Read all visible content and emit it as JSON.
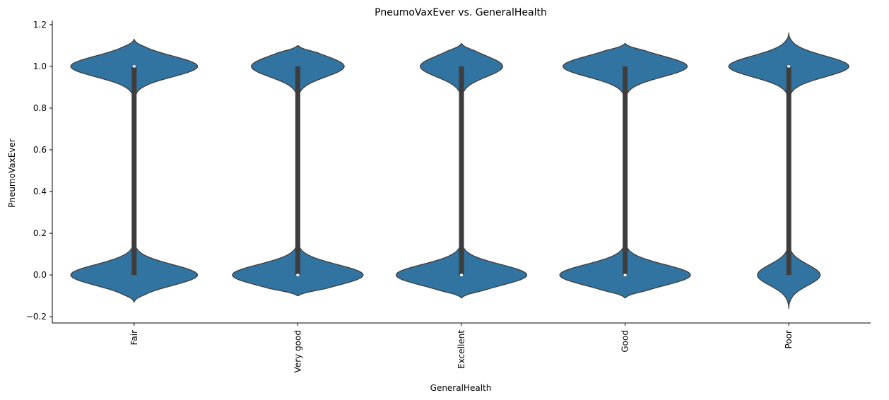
{
  "chart_data": {
    "type": "violin",
    "title": "PneumoVaxEver vs. GeneralHealth",
    "xlabel": "GeneralHealth",
    "ylabel": "PneumoVaxEver",
    "categories": [
      "Fair",
      "Very good",
      "Excellent",
      "Good",
      "Poor"
    ],
    "ylim": [
      -0.23,
      1.22
    ],
    "yticks": [
      -0.2,
      0.0,
      0.2,
      0.4,
      0.6,
      0.8,
      1.0,
      1.2
    ],
    "ytick_labels": [
      "−0.2",
      "0.0",
      "0.2",
      "0.4",
      "0.6",
      "0.8",
      "1.0",
      "1.2"
    ],
    "grid": false,
    "color": "#3274a1",
    "edge_color": "#3d3d3d",
    "series": [
      {
        "category": "Fair",
        "values": [
          0,
          1
        ],
        "proportion_at_1": 0.52,
        "quartiles": [
          0,
          1,
          1
        ],
        "whisker_range": [
          0,
          1
        ],
        "density_extent": [
          -0.13,
          1.13
        ],
        "max_half_width_upper": 0.97,
        "max_half_width_lower": 0.97
      },
      {
        "category": "Very good",
        "values": [
          0,
          1
        ],
        "proportion_at_1": 0.33,
        "quartiles": [
          0,
          0,
          1
        ],
        "whisker_range": [
          0,
          1
        ],
        "density_extent": [
          -0.1,
          1.1
        ],
        "max_half_width_upper": 0.71,
        "max_half_width_lower": 1.0
      },
      {
        "category": "Excellent",
        "values": [
          0,
          1
        ],
        "proportion_at_1": 0.25,
        "quartiles": [
          0,
          0,
          1
        ],
        "whisker_range": [
          0,
          1
        ],
        "density_extent": [
          -0.11,
          1.11
        ],
        "max_half_width_upper": 0.63,
        "max_half_width_lower": 1.0
      },
      {
        "category": "Good",
        "values": [
          0,
          1
        ],
        "proportion_at_1": 0.42,
        "quartiles": [
          0,
          0,
          1
        ],
        "whisker_range": [
          0,
          1
        ],
        "density_extent": [
          -0.11,
          1.11
        ],
        "max_half_width_upper": 0.95,
        "max_half_width_lower": 1.0
      },
      {
        "category": "Poor",
        "values": [
          0,
          1
        ],
        "proportion_at_1": 0.62,
        "quartiles": [
          0,
          1,
          1
        ],
        "whisker_range": [
          0,
          1
        ],
        "density_extent": [
          -0.16,
          1.16
        ],
        "max_half_width_upper": 0.92,
        "max_half_width_lower": 0.48
      }
    ]
  }
}
